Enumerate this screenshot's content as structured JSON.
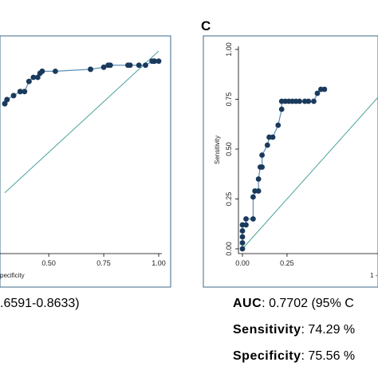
{
  "panel_left": {
    "xaxis_tick_labels": [
      "0.50",
      "0.75",
      "1.00"
    ],
    "xlabel_fragment": "pecificity",
    "stats_line": ".6591-0.8633)"
  },
  "panel_c": {
    "letter": "C",
    "ylabel": "Sensitivity",
    "xlabel_fragment": "1 -",
    "xaxis_tick_labels": [
      "0.00",
      "0.25"
    ],
    "yaxis_tick_labels": [
      "0.00",
      "0.25",
      "0.50",
      "0.75",
      "1.00"
    ],
    "auc_label": "AUC",
    "auc_value": ": 0.7702 (95% C",
    "sensitivity_label": "Sensitivity",
    "sensitivity_value": ": 74.29 %",
    "specificity_label": "Specificity",
    "specificity_value": ": 75.56 %"
  },
  "colors": {
    "marker": "#1a3a5c",
    "curve_line": "#5b8fb5",
    "reference_line": "#4aa39a",
    "frame": "#3c6a8a"
  },
  "chart_data": [
    {
      "type": "line",
      "title": "",
      "xlabel": "pecificity",
      "ylabel": "",
      "xlim": [
        0.3,
        1.0
      ],
      "ylim": [
        0.0,
        1.0
      ],
      "x_ticks": [
        0.5,
        0.75,
        1.0
      ],
      "series": [
        {
          "x": [
            0.3,
            0.3,
            0.31,
            0.31,
            0.34,
            0.34,
            0.37,
            0.37,
            0.39,
            0.41,
            0.41,
            0.43,
            0.45,
            0.46,
            0.47,
            0.47,
            0.53,
            0.69,
            0.69,
            0.75,
            0.77,
            0.78,
            0.86,
            0.87,
            0.91,
            0.94,
            0.97,
            0.98,
            0.98,
            1.0
          ],
          "y": [
            0.74,
            0.74,
            0.76,
            0.76,
            0.78,
            0.78,
            0.8,
            0.8,
            0.8,
            0.85,
            0.85,
            0.87,
            0.87,
            0.89,
            0.9,
            0.9,
            0.9,
            0.91,
            0.91,
            0.92,
            0.93,
            0.93,
            0.93,
            0.93,
            0.93,
            0.93,
            0.95,
            0.95,
            0.95,
            0.95
          ]
        }
      ],
      "reference_line": [
        [
          0.3,
          0.3
        ],
        [
          1.0,
          1.0
        ]
      ]
    },
    {
      "type": "line",
      "title": "",
      "xlabel": "1 -",
      "ylabel": "Sensitivity",
      "xlim": [
        0.0,
        0.76
      ],
      "ylim": [
        0.0,
        1.0
      ],
      "x_ticks": [
        0.0,
        0.25
      ],
      "y_ticks": [
        0.0,
        0.25,
        0.5,
        0.75,
        1.0
      ],
      "series": [
        {
          "x": [
            0.0,
            0.0,
            0.0,
            0.0,
            0.0,
            0.02,
            0.02,
            0.06,
            0.06,
            0.07,
            0.09,
            0.09,
            0.1,
            0.11,
            0.11,
            0.14,
            0.15,
            0.17,
            0.2,
            0.22,
            0.22,
            0.24,
            0.26,
            0.28,
            0.3,
            0.32,
            0.35,
            0.37,
            0.4,
            0.42,
            0.44,
            0.46
          ],
          "y": [
            0.0,
            0.03,
            0.06,
            0.09,
            0.12,
            0.12,
            0.15,
            0.15,
            0.26,
            0.29,
            0.29,
            0.35,
            0.41,
            0.41,
            0.47,
            0.52,
            0.56,
            0.56,
            0.62,
            0.7,
            0.74,
            0.74,
            0.74,
            0.74,
            0.74,
            0.74,
            0.74,
            0.74,
            0.74,
            0.78,
            0.8,
            0.8
          ]
        }
      ],
      "reference_line": [
        [
          0.0,
          0.0
        ],
        [
          0.76,
          0.76
        ]
      ]
    }
  ]
}
